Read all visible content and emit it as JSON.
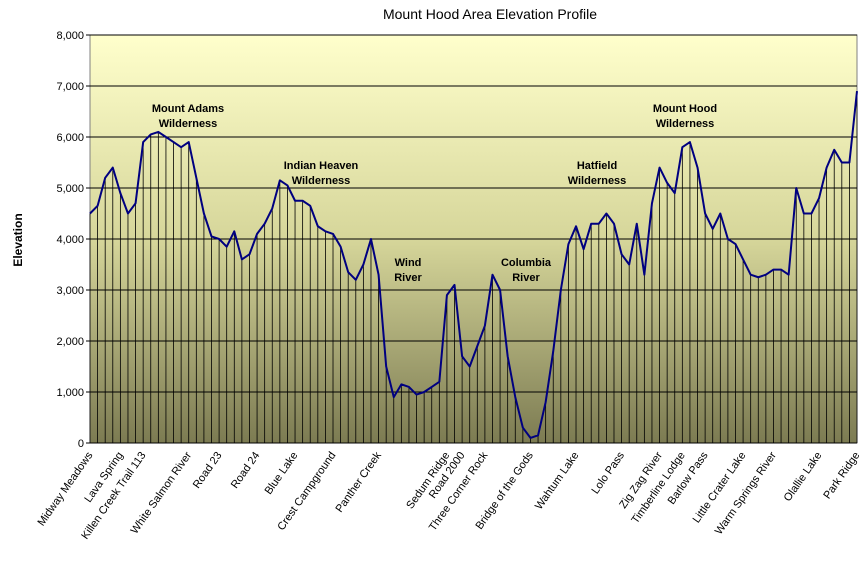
{
  "chart_data": {
    "type": "line",
    "title": "Mount Hood Area Elevation Profile",
    "y_label": "Elevation",
    "categories": [
      "Midway Meadows",
      null,
      null,
      null,
      "Lava Spring",
      null,
      null,
      "Killen Creek Trail 113",
      null,
      null,
      null,
      null,
      null,
      "White Salmon River",
      null,
      null,
      null,
      "Road 23",
      null,
      null,
      null,
      null,
      "Road 24",
      null,
      null,
      null,
      null,
      "Blue Lake",
      null,
      null,
      null,
      null,
      "Crest Campground",
      null,
      null,
      null,
      null,
      null,
      "Panther Creek",
      null,
      null,
      null,
      null,
      null,
      null,
      null,
      null,
      "Sedum Ridge",
      null,
      "Road 2000",
      null,
      null,
      "Three Corner Rock",
      null,
      null,
      null,
      null,
      null,
      "Bridge of the Gods",
      null,
      null,
      null,
      null,
      null,
      "Wahtum Lake",
      null,
      null,
      null,
      null,
      null,
      "Lolo Pass",
      null,
      null,
      null,
      null,
      "Zig Zag River",
      null,
      null,
      "Timberline Lodge",
      null,
      null,
      "Barlow Pass",
      null,
      null,
      null,
      null,
      "Little Crater Lake",
      null,
      null,
      null,
      "Warm Springs River",
      null,
      null,
      null,
      null,
      null,
      "Olallie Lake",
      null,
      null,
      null,
      null,
      "Park Ridge"
    ],
    "values": [
      4500,
      4650,
      5200,
      5400,
      4900,
      4500,
      4700,
      5900,
      6050,
      6100,
      6000,
      5900,
      5800,
      5900,
      5200,
      4500,
      4050,
      4000,
      3850,
      4150,
      3600,
      3700,
      4100,
      4300,
      4600,
      5150,
      5050,
      4750,
      4750,
      4650,
      4250,
      4150,
      4100,
      3850,
      3350,
      3200,
      3500,
      4000,
      3300,
      1500,
      900,
      1150,
      1100,
      950,
      1000,
      1100,
      1200,
      2900,
      3100,
      1700,
      1500,
      1900,
      2300,
      3300,
      3000,
      1700,
      900,
      300,
      100,
      150,
      800,
      1800,
      3000,
      3900,
      4250,
      3800,
      4300,
      4300,
      4500,
      4300,
      3700,
      3500,
      4300,
      3300,
      4700,
      5400,
      5100,
      4900,
      5800,
      5900,
      5400,
      4500,
      4200,
      4500,
      4000,
      3900,
      3600,
      3300,
      3250,
      3300,
      3400,
      3400,
      3300,
      5000,
      4500,
      4500,
      4800,
      5400,
      5750,
      5500,
      5500,
      6900
    ],
    "color": "#000080",
    "ylim": [
      0,
      8000
    ],
    "yticks": [
      0,
      {
        "value": 1000,
        "label": "1,000"
      },
      {
        "value": 2000,
        "label": "2,000"
      },
      {
        "value": 3000,
        "label": "3,000"
      },
      {
        "value": 4000,
        "label": "4,000"
      },
      {
        "value": 5000,
        "label": "5,000"
      },
      {
        "value": 6000,
        "label": "6,000"
      },
      {
        "value": 7000,
        "label": "7,000"
      },
      {
        "value": 8000,
        "label": "8,000"
      }
    ],
    "grid": true,
    "annotations": [
      [
        "Mount Adams",
        "Wilderness"
      ],
      [
        "Indian Heaven",
        "Wilderness"
      ],
      [
        "Wind",
        "River"
      ],
      [
        "Columbia",
        "River"
      ],
      [
        "Hatfield",
        "Wilderness"
      ],
      [
        "Mount Hood",
        "Wilderness"
      ]
    ]
  }
}
